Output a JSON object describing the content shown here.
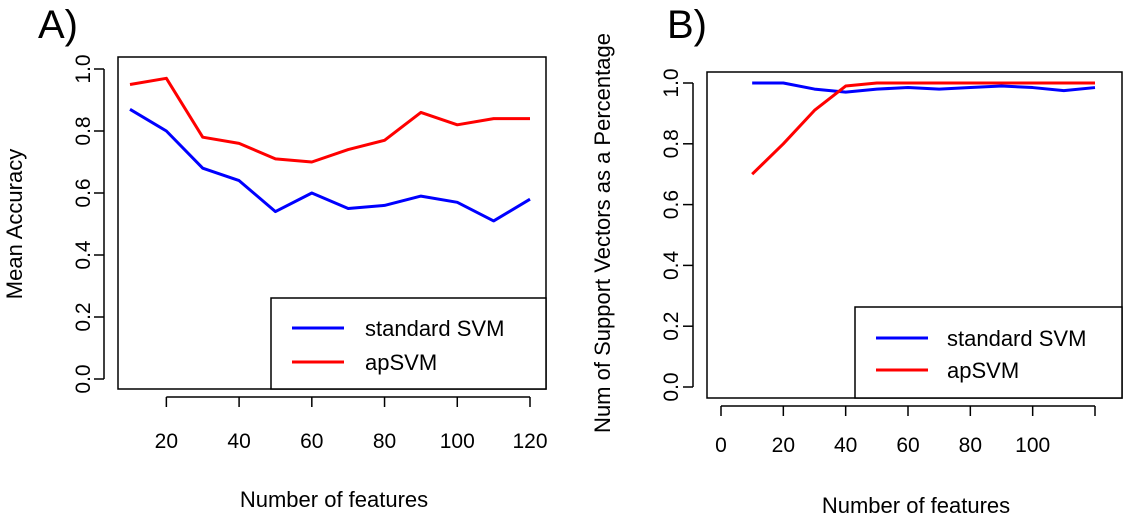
{
  "chart_data": [
    {
      "type": "line",
      "panel_label": "A)",
      "title": "",
      "xlabel": "Number of features",
      "ylabel": "Mean Accuracy",
      "xlim": [
        10,
        120
      ],
      "ylim": [
        0.0,
        1.0
      ],
      "xticks": [
        20,
        40,
        60,
        80,
        100,
        120
      ],
      "yticks": [
        0.0,
        0.2,
        0.4,
        0.6,
        0.8,
        1.0
      ],
      "grid": false,
      "legend_position": "bottom-right",
      "x": [
        10,
        20,
        30,
        40,
        50,
        60,
        70,
        80,
        90,
        100,
        110,
        120
      ],
      "series": [
        {
          "name": "standard SVM",
          "color": "#0000ff",
          "values": [
            0.87,
            0.8,
            0.68,
            0.64,
            0.54,
            0.6,
            0.55,
            0.56,
            0.59,
            0.57,
            0.51,
            0.58
          ]
        },
        {
          "name": "apSVM",
          "color": "#ff0000",
          "values": [
            0.95,
            0.97,
            0.78,
            0.76,
            0.71,
            0.7,
            0.74,
            0.77,
            0.86,
            0.82,
            0.84,
            0.84
          ]
        }
      ]
    },
    {
      "type": "line",
      "panel_label": "B)",
      "title": "",
      "xlabel": "Number of features",
      "ylabel": "Num of Support Vectors as a Percentage",
      "xlim": [
        0,
        120
      ],
      "ylim": [
        0.0,
        1.0
      ],
      "xticks": [
        0,
        20,
        40,
        60,
        80,
        100
      ],
      "yticks": [
        0.0,
        0.2,
        0.4,
        0.6,
        0.8,
        1.0
      ],
      "grid": false,
      "legend_position": "bottom-right",
      "x": [
        10,
        20,
        30,
        40,
        50,
        60,
        70,
        80,
        90,
        100,
        110,
        120
      ],
      "series": [
        {
          "name": "standard SVM",
          "color": "#0000ff",
          "values": [
            1.0,
            1.0,
            0.98,
            0.97,
            0.98,
            0.985,
            0.98,
            0.985,
            0.99,
            0.985,
            0.975,
            0.985
          ]
        },
        {
          "name": "apSVM",
          "color": "#ff0000",
          "values": [
            0.7,
            0.8,
            0.91,
            0.99,
            1.0,
            1.0,
            1.0,
            1.0,
            1.0,
            1.0,
            1.0,
            1.0
          ]
        }
      ]
    }
  ]
}
